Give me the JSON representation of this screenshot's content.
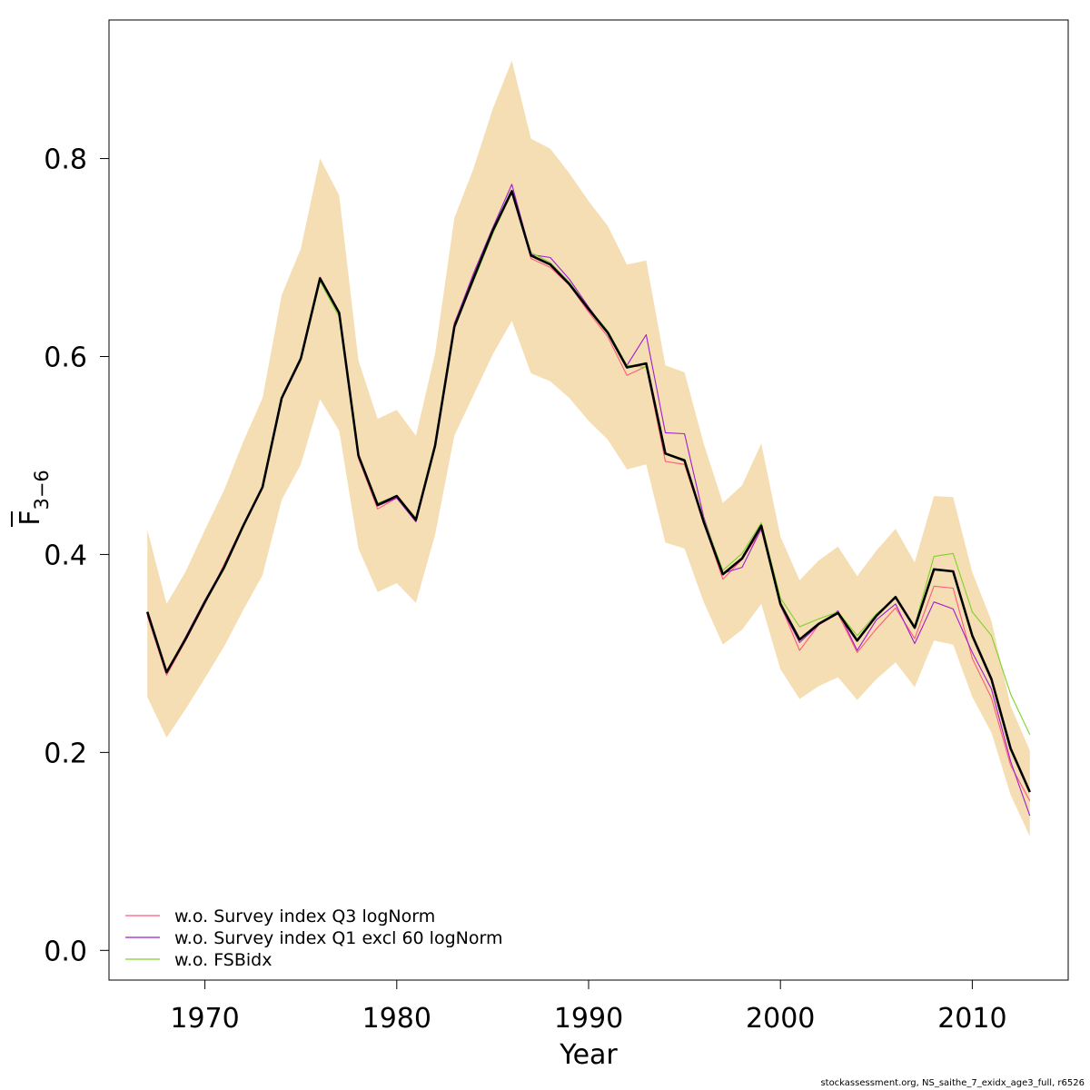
{
  "chart_data": {
    "type": "line",
    "xlabel": "Year",
    "ylabel": "F",
    "ylabel_sub": "3−6",
    "xlim": [
      1965,
      2015
    ],
    "ylim": [
      -0.03,
      0.94
    ],
    "x_ticks": [
      1970,
      1980,
      1990,
      2000,
      2010
    ],
    "x_tick_labels": [
      "1970",
      "1980",
      "1990",
      "2000",
      "2010"
    ],
    "y_ticks": [
      0.0,
      0.2,
      0.4,
      0.6,
      0.8
    ],
    "y_tick_labels": [
      "0.0",
      "0.2",
      "0.4",
      "0.6",
      "0.8"
    ],
    "legend_position": "bottom-left",
    "x": [
      1967,
      1968,
      1969,
      1970,
      1971,
      1972,
      1973,
      1974,
      1975,
      1976,
      1977,
      1978,
      1979,
      1980,
      1981,
      1982,
      1983,
      1984,
      1985,
      1986,
      1987,
      1988,
      1989,
      1990,
      1991,
      1992,
      1993,
      1994,
      1995,
      1996,
      1997,
      1998,
      1999,
      2000,
      2001,
      2002,
      2003,
      2004,
      2005,
      2006,
      2007,
      2008,
      2009,
      2010,
      2011,
      2012,
      2013
    ],
    "band": {
      "color": "#F5DEB3",
      "upper": [
        0.425,
        0.35,
        0.383,
        0.425,
        0.465,
        0.514,
        0.558,
        0.662,
        0.709,
        0.8,
        0.763,
        0.596,
        0.537,
        0.546,
        0.52,
        0.603,
        0.74,
        0.79,
        0.85,
        0.899,
        0.82,
        0.81,
        0.785,
        0.757,
        0.732,
        0.693,
        0.697,
        0.591,
        0.584,
        0.512,
        0.452,
        0.47,
        0.512,
        0.418,
        0.374,
        0.394,
        0.408,
        0.378,
        0.404,
        0.426,
        0.392,
        0.459,
        0.458,
        0.382,
        0.333,
        0.247,
        0.202
      ],
      "lower": [
        0.256,
        0.215,
        0.244,
        0.275,
        0.307,
        0.344,
        0.379,
        0.455,
        0.491,
        0.557,
        0.525,
        0.406,
        0.362,
        0.371,
        0.351,
        0.42,
        0.52,
        0.561,
        0.602,
        0.636,
        0.583,
        0.575,
        0.558,
        0.535,
        0.516,
        0.486,
        0.491,
        0.412,
        0.406,
        0.352,
        0.309,
        0.324,
        0.35,
        0.284,
        0.254,
        0.267,
        0.276,
        0.253,
        0.274,
        0.291,
        0.266,
        0.313,
        0.309,
        0.256,
        0.22,
        0.157,
        0.115
      ]
    },
    "series": [
      {
        "name": "w.o. Survey index Q3 logNorm",
        "color": "#FF5A7A",
        "values": [
          0.338,
          0.278,
          0.313,
          0.35,
          0.39,
          0.43,
          0.468,
          0.557,
          0.597,
          0.68,
          0.643,
          0.497,
          0.446,
          0.457,
          0.433,
          0.509,
          0.634,
          0.681,
          0.728,
          0.768,
          0.699,
          0.69,
          0.672,
          0.645,
          0.62,
          0.581,
          0.59,
          0.494,
          0.491,
          0.432,
          0.375,
          0.395,
          0.425,
          0.349,
          0.303,
          0.329,
          0.34,
          0.301,
          0.325,
          0.346,
          0.315,
          0.368,
          0.366,
          0.295,
          0.255,
          0.187,
          0.151
        ]
      },
      {
        "name": "w.o. Survey index Q1 excl 60 logNorm",
        "color": "#9F1FD0",
        "values": [
          0.341,
          0.281,
          0.317,
          0.354,
          0.388,
          0.43,
          0.468,
          0.557,
          0.596,
          0.68,
          0.645,
          0.5,
          0.449,
          0.457,
          0.433,
          0.508,
          0.633,
          0.684,
          0.73,
          0.774,
          0.703,
          0.7,
          0.678,
          0.65,
          0.624,
          0.591,
          0.622,
          0.523,
          0.522,
          0.438,
          0.381,
          0.387,
          0.426,
          0.348,
          0.311,
          0.329,
          0.343,
          0.303,
          0.334,
          0.35,
          0.31,
          0.352,
          0.345,
          0.301,
          0.264,
          0.191,
          0.136
        ]
      },
      {
        "name": "w.o. FSBidx",
        "color": "#7CD32A",
        "values": [
          0.342,
          0.282,
          0.314,
          0.352,
          0.385,
          0.428,
          0.467,
          0.558,
          0.596,
          0.676,
          0.64,
          0.501,
          0.452,
          0.459,
          0.437,
          0.51,
          0.631,
          0.676,
          0.724,
          0.766,
          0.705,
          0.695,
          0.675,
          0.649,
          0.626,
          0.591,
          0.589,
          0.502,
          0.496,
          0.436,
          0.384,
          0.401,
          0.432,
          0.356,
          0.327,
          0.335,
          0.342,
          0.318,
          0.34,
          0.356,
          0.328,
          0.398,
          0.401,
          0.342,
          0.318,
          0.259,
          0.218
        ]
      },
      {
        "name": "",
        "color": "#000000",
        "values": [
          0.342,
          0.281,
          0.315,
          0.352,
          0.387,
          0.429,
          0.468,
          0.558,
          0.598,
          0.679,
          0.644,
          0.5,
          0.45,
          0.459,
          0.435,
          0.51,
          0.63,
          0.679,
          0.727,
          0.767,
          0.702,
          0.693,
          0.673,
          0.648,
          0.624,
          0.589,
          0.593,
          0.502,
          0.495,
          0.433,
          0.38,
          0.396,
          0.429,
          0.35,
          0.314,
          0.33,
          0.341,
          0.313,
          0.338,
          0.357,
          0.326,
          0.385,
          0.383,
          0.318,
          0.274,
          0.204,
          0.16
        ]
      }
    ]
  },
  "footer": "stockassessment.org, NS_saithe_7_exidx_age3_full, r6526"
}
